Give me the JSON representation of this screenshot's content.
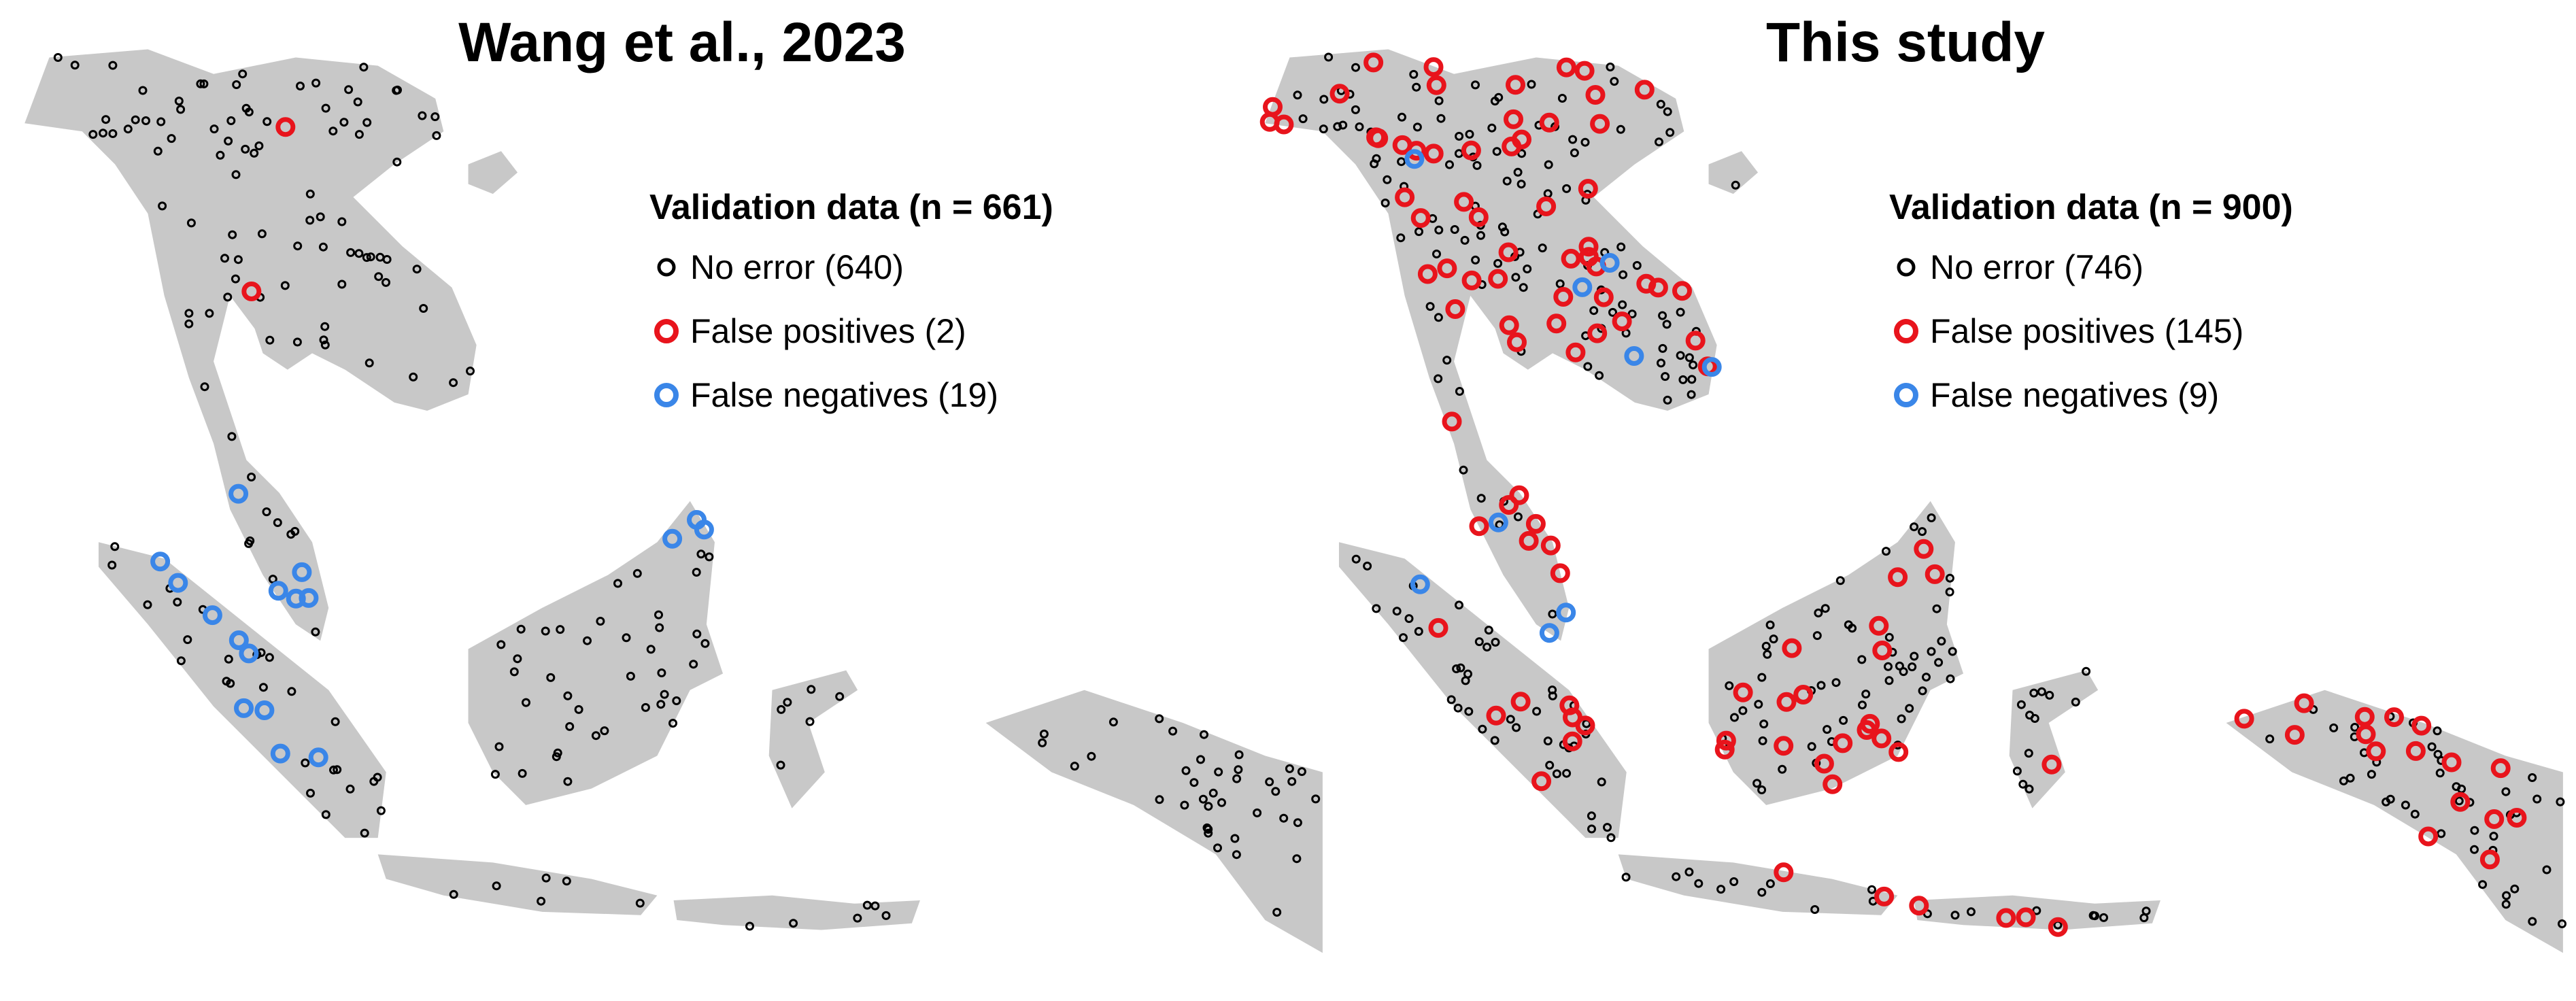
{
  "panels": [
    {
      "title": "Wang et al., 2023",
      "legend": {
        "title": "Validation data (n = 661)",
        "items": [
          "No error (640)",
          "False positives (2)",
          "False negatives (19)"
        ]
      }
    },
    {
      "title": "This study",
      "legend": {
        "title": "Validation data (n = 900)",
        "items": [
          "No error (746)",
          "False positives (145)",
          "False negatives (9)"
        ]
      }
    }
  ]
}
